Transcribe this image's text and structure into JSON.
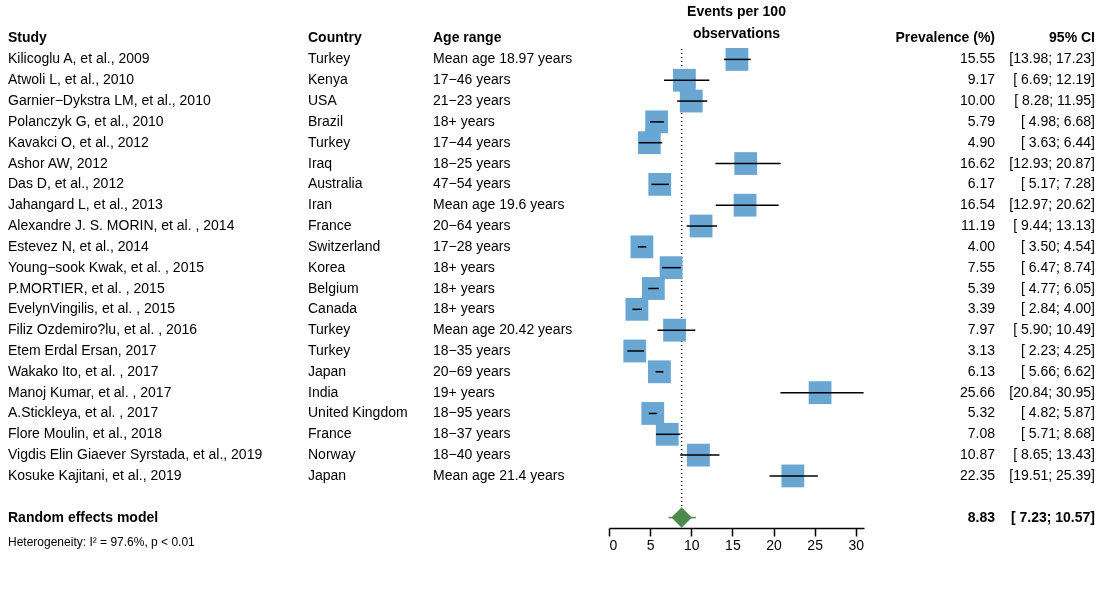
{
  "chart_data": [
    {
      "type": "other",
      "title": "Study",
      "categories": [
        "Kilicoglu A, et al., 2009",
        "Atwoli L, et al., 2010",
        "Garnier−Dykstra LM, et al., 2010",
        "Polanczyk G, et al., 2010",
        "Kavakci O, et al., 2012",
        "Ashor AW, 2012",
        "Das D, et al., 2012",
        "Jahangard L, et al., 2013",
        "Alexandre J. S. MORIN, et al. , 2014",
        "Estevez N, et al., 2014",
        "Young−sook Kwak, et al. , 2015",
        "P.MORTIER, et al. , 2015",
        "EvelynVingilis, et al. , 2015",
        "Filiz Ozdemiro?lu, et al. , 2016",
        "Etem Erdal Ersan, 2017",
        "Wakako Ito, et al. , 2017",
        "Manoj Kumar, et al. , 2017",
        "A.Stickleya, et al. , 2017",
        "Flore Moulin, et al., 2018",
        "Vigdis Elin Giaever Syrstada, et al., 2019",
        "Kosuke Kajitani, et al., 2019",
        null,
        "Random effects model"
      ],
      "annotations": [
        "Heterogeneity: I² = 97.6%, p < 0.01"
      ]
    },
    {
      "type": "other",
      "title": "Country",
      "categories": [
        "Turkey",
        "Kenya",
        "USA",
        "Brazil",
        "Turkey",
        "Iraq",
        "Australia",
        "Iran",
        "France",
        "Switzerland",
        "Korea",
        "Belgium",
        "Canada",
        "Turkey",
        "Turkey",
        "Japan",
        "India",
        "United Kingdom",
        "France",
        "Norway",
        "Japan",
        null,
        null
      ]
    },
    {
      "type": "other",
      "title": "Age range",
      "categories": [
        "Mean age 18.97 years",
        "17−46 years",
        "21−23 years",
        "18+ years",
        "17−44 years",
        "18−25 years",
        "47−54 years",
        "Mean age 19.6 years",
        "20−64 years",
        "17−28 years",
        "18+ years",
        "18+ years",
        "18+ years",
        "Mean age 20.42 years",
        "18−35 years",
        "20−69 years",
        "19+ years",
        "18−95 years",
        "18−37 years",
        "18−40 years",
        "Mean age 21.4 years",
        null,
        null
      ]
    },
    {
      "type": "scatter",
      "orientation": "horizontal",
      "title": "Events per 100\nobservations",
      "categories": [
        null,
        null,
        null,
        null,
        null,
        null,
        null,
        null,
        null,
        null,
        null,
        null,
        null,
        null,
        null,
        null,
        null,
        null,
        null,
        null,
        null,
        null,
        null
      ],
      "xlim": [
        0,
        31
      ],
      "xticks": [
        0,
        5,
        10,
        15,
        20,
        25,
        30
      ],
      "grid": false,
      "ref_lines": [
        {
          "axis": "x",
          "value": 8.83,
          "line_style": "dotted"
        }
      ],
      "series": [
        {
          "color": "#6aa6d2",
          "marker": "square",
          "values": [
            15.55,
            9.17,
            10.0,
            5.79,
            4.9,
            16.62,
            6.17,
            16.54,
            11.19,
            4.0,
            7.55,
            5.39,
            3.39,
            7.97,
            3.13,
            6.13,
            25.66,
            5.32,
            7.08,
            10.87,
            22.35,
            null,
            null
          ],
          "errors": [
            [
              13.98,
              17.23
            ],
            [
              6.69,
              12.19
            ],
            [
              8.28,
              11.95
            ],
            [
              4.98,
              6.68
            ],
            [
              3.63,
              6.44
            ],
            [
              12.93,
              20.87
            ],
            [
              5.17,
              7.28
            ],
            [
              12.97,
              20.62
            ],
            [
              9.44,
              13.13
            ],
            [
              3.5,
              4.54
            ],
            [
              6.47,
              8.74
            ],
            [
              4.77,
              6.05
            ],
            [
              2.84,
              4.0
            ],
            [
              5.9,
              10.49
            ],
            [
              2.23,
              4.25
            ],
            [
              5.66,
              6.62
            ],
            [
              20.84,
              30.95
            ],
            [
              4.82,
              5.87
            ],
            [
              5.71,
              8.68
            ],
            [
              8.65,
              13.43
            ],
            [
              19.51,
              25.39
            ],
            null,
            null
          ]
        },
        {
          "color": "#4e8a4e",
          "marker": "diamond",
          "values": [
            null,
            null,
            null,
            null,
            null,
            null,
            null,
            null,
            null,
            null,
            null,
            null,
            null,
            null,
            null,
            null,
            null,
            null,
            null,
            null,
            null,
            null,
            8.83
          ],
          "errors": [
            null,
            null,
            null,
            null,
            null,
            null,
            null,
            null,
            null,
            null,
            null,
            null,
            null,
            null,
            null,
            null,
            null,
            null,
            null,
            null,
            null,
            null,
            [
              7.23,
              10.57
            ]
          ]
        }
      ]
    },
    {
      "type": "other",
      "title": "Prevalence (%)",
      "categories": [
        "15.55",
        "9.17",
        "10.00",
        "5.79",
        "4.90",
        "16.62",
        "6.17",
        "16.54",
        "11.19",
        "4.00",
        "7.55",
        "5.39",
        "3.39",
        "7.97",
        "3.13",
        "6.13",
        "25.66",
        "5.32",
        "7.08",
        "10.87",
        "22.35",
        null,
        "8.83"
      ]
    },
    {
      "type": "other",
      "title": "95% CI",
      "categories": [
        "[13.98; 17.23]",
        "[ 6.69; 12.19]",
        "[ 8.28; 11.95]",
        "[ 4.98;  6.68]",
        "[ 3.63;  6.44]",
        "[12.93; 20.87]",
        "[ 5.17;  7.28]",
        "[12.97; 20.62]",
        "[ 9.44; 13.13]",
        "[ 3.50;  4.54]",
        "[ 6.47;  8.74]",
        "[ 4.77;  6.05]",
        "[ 2.84;  4.00]",
        "[ 5.90; 10.49]",
        "[ 2.23;  4.25]",
        "[ 5.66;  6.62]",
        "[20.84; 30.95]",
        "[ 4.82;  5.87]",
        "[ 5.71;  8.68]",
        "[ 8.65; 13.43]",
        "[19.51; 25.39]",
        null,
        "[ 7.23; 10.57]"
      ]
    }
  ]
}
